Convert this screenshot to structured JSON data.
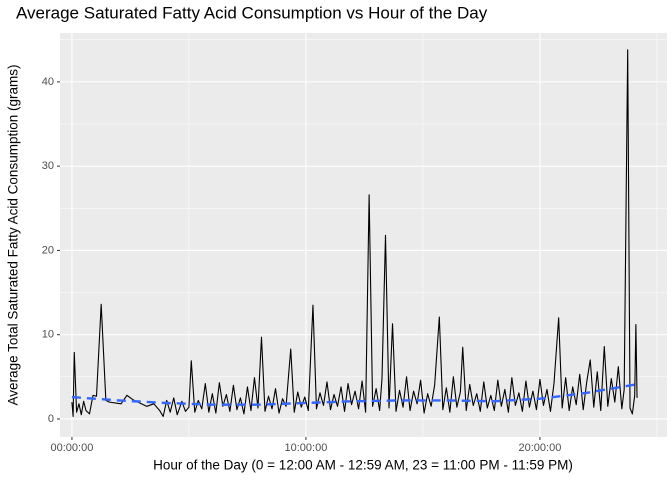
{
  "chart_data": {
    "type": "line",
    "title": "Average Saturated Fatty Acid Consumption vs Hour of the Day",
    "x_label": "Hour of the Day (0 = 12:00 AM - 12:59 AM, 23 = 11:00 PM - 11:59 PM)",
    "y_label": "Average Total Saturated Fatty Acid Consumption (grams)",
    "xlim": [
      -0.51,
      25.43
    ],
    "ylim": [
      -2.14,
      45.8
    ],
    "xticks": [
      {
        "value": 0,
        "label": "00:00:00"
      },
      {
        "value": 10,
        "label": "10:00:00"
      },
      {
        "value": 20,
        "label": "20:00:00"
      }
    ],
    "yticks": [
      0,
      10,
      20,
      30,
      40
    ],
    "grid": true,
    "minor_grid": true,
    "series": [
      {
        "color": "#000000",
        "style": "solid",
        "x": [
          0,
          0.05,
          0.1,
          0.2,
          0.3,
          0.4,
          0.5,
          0.6,
          0.75,
          0.9,
          1.05,
          1.25,
          1.45,
          1.6,
          2.1,
          2.35,
          2.6,
          2.9,
          3.2,
          3.5,
          3.75,
          3.9,
          4.05,
          4.2,
          4.35,
          4.5,
          4.7,
          4.85,
          5.0,
          5.1,
          5.25,
          5.4,
          5.55,
          5.7,
          5.85,
          6.0,
          6.15,
          6.3,
          6.45,
          6.6,
          6.75,
          6.9,
          7.05,
          7.2,
          7.35,
          7.5,
          7.65,
          7.8,
          7.95,
          8.1,
          8.25,
          8.4,
          8.55,
          8.7,
          8.85,
          9.0,
          9.15,
          9.35,
          9.5,
          9.65,
          9.8,
          9.95,
          10.1,
          10.3,
          10.45,
          10.6,
          10.75,
          10.9,
          11.05,
          11.2,
          11.35,
          11.5,
          11.65,
          11.8,
          11.95,
          12.1,
          12.25,
          12.4,
          12.55,
          12.7,
          12.85,
          13.0,
          13.15,
          13.25,
          13.4,
          13.55,
          13.7,
          13.85,
          14.0,
          14.15,
          14.3,
          14.45,
          14.6,
          14.75,
          14.9,
          15.05,
          15.2,
          15.35,
          15.5,
          15.7,
          15.85,
          16.0,
          16.15,
          16.3,
          16.45,
          16.6,
          16.7,
          16.85,
          17.0,
          17.15,
          17.3,
          17.45,
          17.6,
          17.75,
          17.9,
          18.05,
          18.2,
          18.35,
          18.5,
          18.65,
          18.8,
          18.95,
          19.1,
          19.25,
          19.4,
          19.55,
          19.7,
          19.85,
          20.0,
          20.15,
          20.3,
          20.45,
          20.6,
          20.8,
          20.95,
          21.1,
          21.25,
          21.4,
          21.55,
          21.7,
          21.85,
          22.0,
          22.15,
          22.3,
          22.45,
          22.6,
          22.75,
          22.9,
          23.05,
          23.2,
          23.35,
          23.5,
          23.6,
          23.75,
          23.85,
          23.95,
          24.05,
          24.1,
          24.15
        ],
        "values": [
          2.0,
          0.3,
          7.9,
          0.8,
          1.8,
          0.5,
          2.1,
          1.0,
          0.6,
          2.8,
          2.7,
          13.6,
          2.2,
          2.0,
          1.8,
          2.8,
          2.3,
          1.9,
          1.5,
          1.8,
          1.0,
          0.3,
          2.2,
          0.8,
          2.5,
          0.5,
          2.1,
          0.9,
          1.4,
          6.9,
          0.8,
          2.2,
          1.2,
          4.2,
          0.8,
          3.0,
          0.7,
          4.3,
          1.5,
          2.9,
          0.9,
          4.0,
          1.1,
          2.5,
          0.6,
          3.8,
          1.0,
          4.9,
          1.3,
          9.7,
          0.9,
          2.7,
          1.2,
          3.6,
          0.7,
          2.4,
          1.5,
          8.3,
          0.8,
          3.2,
          1.4,
          2.6,
          1.0,
          13.5,
          1.2,
          3.1,
          1.6,
          4.4,
          1.1,
          2.9,
          1.5,
          3.8,
          0.9,
          4.2,
          1.7,
          3.3,
          1.2,
          4.5,
          0.8,
          26.6,
          1.5,
          3.6,
          1.0,
          4.8,
          21.8,
          1.3,
          11.3,
          0.9,
          3.4,
          1.4,
          5.0,
          1.0,
          3.3,
          1.8,
          4.6,
          0.7,
          3.0,
          1.5,
          4.0,
          12.1,
          1.1,
          3.7,
          0.8,
          5.0,
          1.4,
          3.2,
          8.5,
          1.0,
          4.1,
          1.6,
          3.0,
          0.9,
          4.4,
          1.3,
          2.8,
          1.0,
          4.6,
          1.5,
          3.5,
          0.8,
          4.9,
          1.6,
          3.1,
          0.9,
          4.5,
          1.4,
          3.3,
          1.1,
          4.7,
          1.6,
          3.5,
          0.9,
          4.2,
          12.0,
          1.3,
          4.9,
          1.0,
          3.8,
          1.7,
          5.3,
          1.1,
          4.4,
          7.0,
          1.4,
          5.6,
          1.0,
          8.6,
          1.5,
          4.8,
          2.0,
          6.2,
          1.2,
          3.5,
          43.8,
          1.3,
          0.6,
          2.8,
          11.2,
          2.5
        ]
      },
      {
        "color": "#3366ff",
        "style": "dashed",
        "x": [
          0,
          2,
          4,
          6,
          8,
          10,
          12,
          14,
          16,
          18,
          20,
          22,
          24.1
        ],
        "values": [
          2.6,
          2.2,
          1.9,
          1.7,
          1.7,
          1.9,
          2.1,
          2.2,
          2.2,
          2.1,
          2.4,
          3.1,
          4.1
        ]
      }
    ]
  }
}
